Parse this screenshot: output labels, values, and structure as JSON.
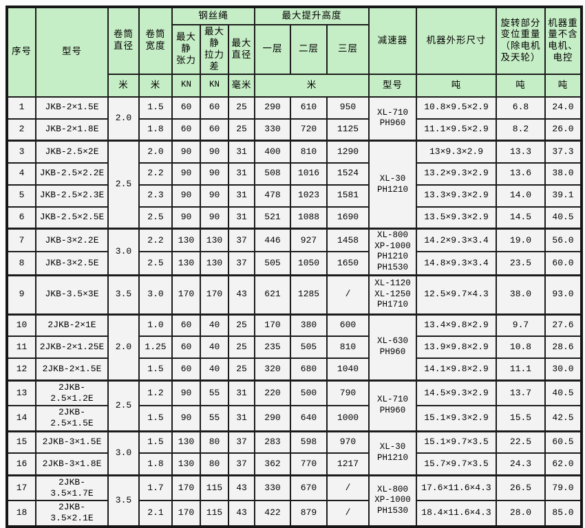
{
  "colors": {
    "header_bg": "#c6eec6",
    "cell_bg": "#f3f3f3",
    "border": "#1b1b1b"
  },
  "header": {
    "seq": "序号",
    "model": "型号",
    "drum_diameter": "卷筒\n直径",
    "drum_width": "卷筒\n宽度",
    "wire_rope_group": "钢丝绳",
    "max_static_tension": "最大静\n张力",
    "max_static_pull_diff": "最大静\n拉力差",
    "max_rope_diameter": "最大\n直径",
    "max_lift_height_group": "最大提升高度",
    "layer1": "一层",
    "layer2": "二层",
    "layer3": "三层",
    "reducer": "减速器",
    "machine_dimensions": "机器外形尺寸",
    "rotating_weight": "旋转部分变位重量（除电机及天轮）",
    "machine_weight": "机器重量不含电机、电控"
  },
  "units": {
    "drum_diameter": "米",
    "drum_width": "米",
    "max_static_tension": "KN",
    "max_static_pull_diff": "KN",
    "max_rope_diameter": "毫米",
    "lift_height": "米",
    "reducer": "型号",
    "machine_dimensions": "吨",
    "rotating_weight": "吨",
    "machine_weight": "吨"
  },
  "rows": [
    [
      "1",
      "JKB-2×1.5E",
      "1.5",
      "60",
      "60",
      "25",
      "290",
      "610",
      "950",
      "10.8×9.5×2.9",
      "6.8",
      "24.0"
    ],
    [
      "2",
      "JKB-2×1.8E",
      "1.8",
      "60",
      "60",
      "25",
      "330",
      "720",
      "1125",
      "11.1×9.5×2.9",
      "8.2",
      "26.0"
    ],
    [
      "3",
      "JKB-2.5×2E",
      "2.0",
      "90",
      "90",
      "31",
      "400",
      "810",
      "1290",
      "13×9.3×2.9",
      "13.3",
      "37.3"
    ],
    [
      "4",
      "JKB-2.5×2.2E",
      "2.2",
      "90",
      "90",
      "31",
      "508",
      "1016",
      "1524",
      "13.2×9.3×2.9",
      "13.6",
      "38.0"
    ],
    [
      "5",
      "JKB-2.5×2.3E",
      "2.3",
      "90",
      "90",
      "31",
      "478",
      "1023",
      "1581",
      "13.3×9.3×2.9",
      "14.0",
      "39.1"
    ],
    [
      "6",
      "JKB-2.5×2.5E",
      "2.5",
      "90",
      "90",
      "31",
      "521",
      "1088",
      "1690",
      "13.5×9.3×2.9",
      "14.5",
      "40.5"
    ],
    [
      "7",
      "JKB-3×2.2E",
      "2.2",
      "130",
      "130",
      "37",
      "446",
      "927",
      "1458",
      "14.2×9.3×3.4",
      "19.0",
      "56.0"
    ],
    [
      "8",
      "JKB-3×2.5E",
      "2.5",
      "130",
      "130",
      "37",
      "505",
      "1050",
      "1650",
      "14.8×9.3×3.4",
      "23.5",
      "60.0"
    ],
    [
      "9",
      "JKB-3.5×3E",
      "3.0",
      "170",
      "170",
      "43",
      "621",
      "1285",
      "/",
      "12.5×9.7×4.3",
      "38.0",
      "93.0"
    ],
    [
      "10",
      "2JKB-2×1E",
      "1.0",
      "60",
      "40",
      "25",
      "170",
      "380",
      "600",
      "13.4×9.8×2.9",
      "9.7",
      "27.6"
    ],
    [
      "11",
      "2JKB-2×1.25E",
      "1.25",
      "60",
      "40",
      "25",
      "235",
      "505",
      "810",
      "13.9×9.8×2.9",
      "10.8",
      "28.6"
    ],
    [
      "12",
      "2JKB-2×1.5E",
      "1.5",
      "60",
      "40",
      "25",
      "320",
      "680",
      "1040",
      "14.1×9.8×2.9",
      "11.1",
      "30.0"
    ],
    [
      "13",
      "2JKB-2.5×1.2E",
      "1.2",
      "90",
      "55",
      "31",
      "220",
      "500",
      "790",
      "14.5×9.3×2.9",
      "13.7",
      "40.5"
    ],
    [
      "14",
      "2JKB-2.5×1.5E",
      "1.5",
      "90",
      "55",
      "31",
      "290",
      "640",
      "1000",
      "15.1×9.3×2.9",
      "15.5",
      "42.5"
    ],
    [
      "15",
      "2JKB-3×1.5E",
      "1.5",
      "130",
      "80",
      "37",
      "283",
      "598",
      "970",
      "15.1×9.7×3.5",
      "22.5",
      "60.5"
    ],
    [
      "16",
      "2JKB-3×1.8E",
      "1.8",
      "130",
      "80",
      "37",
      "362",
      "770",
      "1217",
      "15.7×9.7×3.5",
      "24.3",
      "62.0"
    ],
    [
      "17",
      "2JKB-3.5×1.7E",
      "1.7",
      "170",
      "115",
      "43",
      "330",
      "670",
      "/",
      "17.6×11.6×4.3",
      "26.5",
      "79.0"
    ],
    [
      "18",
      "2JKB-3.5×2.1E",
      "2.1",
      "170",
      "115",
      "43",
      "422",
      "879",
      "/",
      "18.4×11.6×4.3",
      "28.0",
      "85.0"
    ]
  ],
  "drum_groups": [
    {
      "start": 0,
      "span": 2,
      "value": "2.0"
    },
    {
      "start": 2,
      "span": 4,
      "value": "2.5"
    },
    {
      "start": 6,
      "span": 2,
      "value": "3.0"
    },
    {
      "start": 8,
      "span": 1,
      "value": "3.5"
    },
    {
      "start": 9,
      "span": 3,
      "value": "2.0"
    },
    {
      "start": 12,
      "span": 2,
      "value": "2.5"
    },
    {
      "start": 14,
      "span": 2,
      "value": "3.0"
    },
    {
      "start": 16,
      "span": 2,
      "value": "3.5"
    }
  ],
  "reducer_groups": [
    {
      "start": 0,
      "span": 2,
      "lines": [
        "XL-710",
        "PH960"
      ]
    },
    {
      "start": 2,
      "span": 4,
      "lines": [
        "XL-30",
        "PH1210"
      ]
    },
    {
      "start": 6,
      "span": 2,
      "lines": [
        "XL-800",
        "XP-1000",
        "PH1210",
        "PH1530"
      ]
    },
    {
      "start": 8,
      "span": 1,
      "lines": [
        "XL-1120",
        "XL-1250",
        "PH1710"
      ]
    },
    {
      "start": 9,
      "span": 3,
      "lines": [
        "XL-630",
        "PH960"
      ]
    },
    {
      "start": 12,
      "span": 2,
      "lines": [
        "XL-710",
        "PH960"
      ]
    },
    {
      "start": 14,
      "span": 2,
      "lines": [
        "XL-30",
        "PH1210"
      ]
    },
    {
      "start": 16,
      "span": 2,
      "lines": [
        "XL-800",
        "XP-1000",
        "PH1530"
      ]
    }
  ]
}
